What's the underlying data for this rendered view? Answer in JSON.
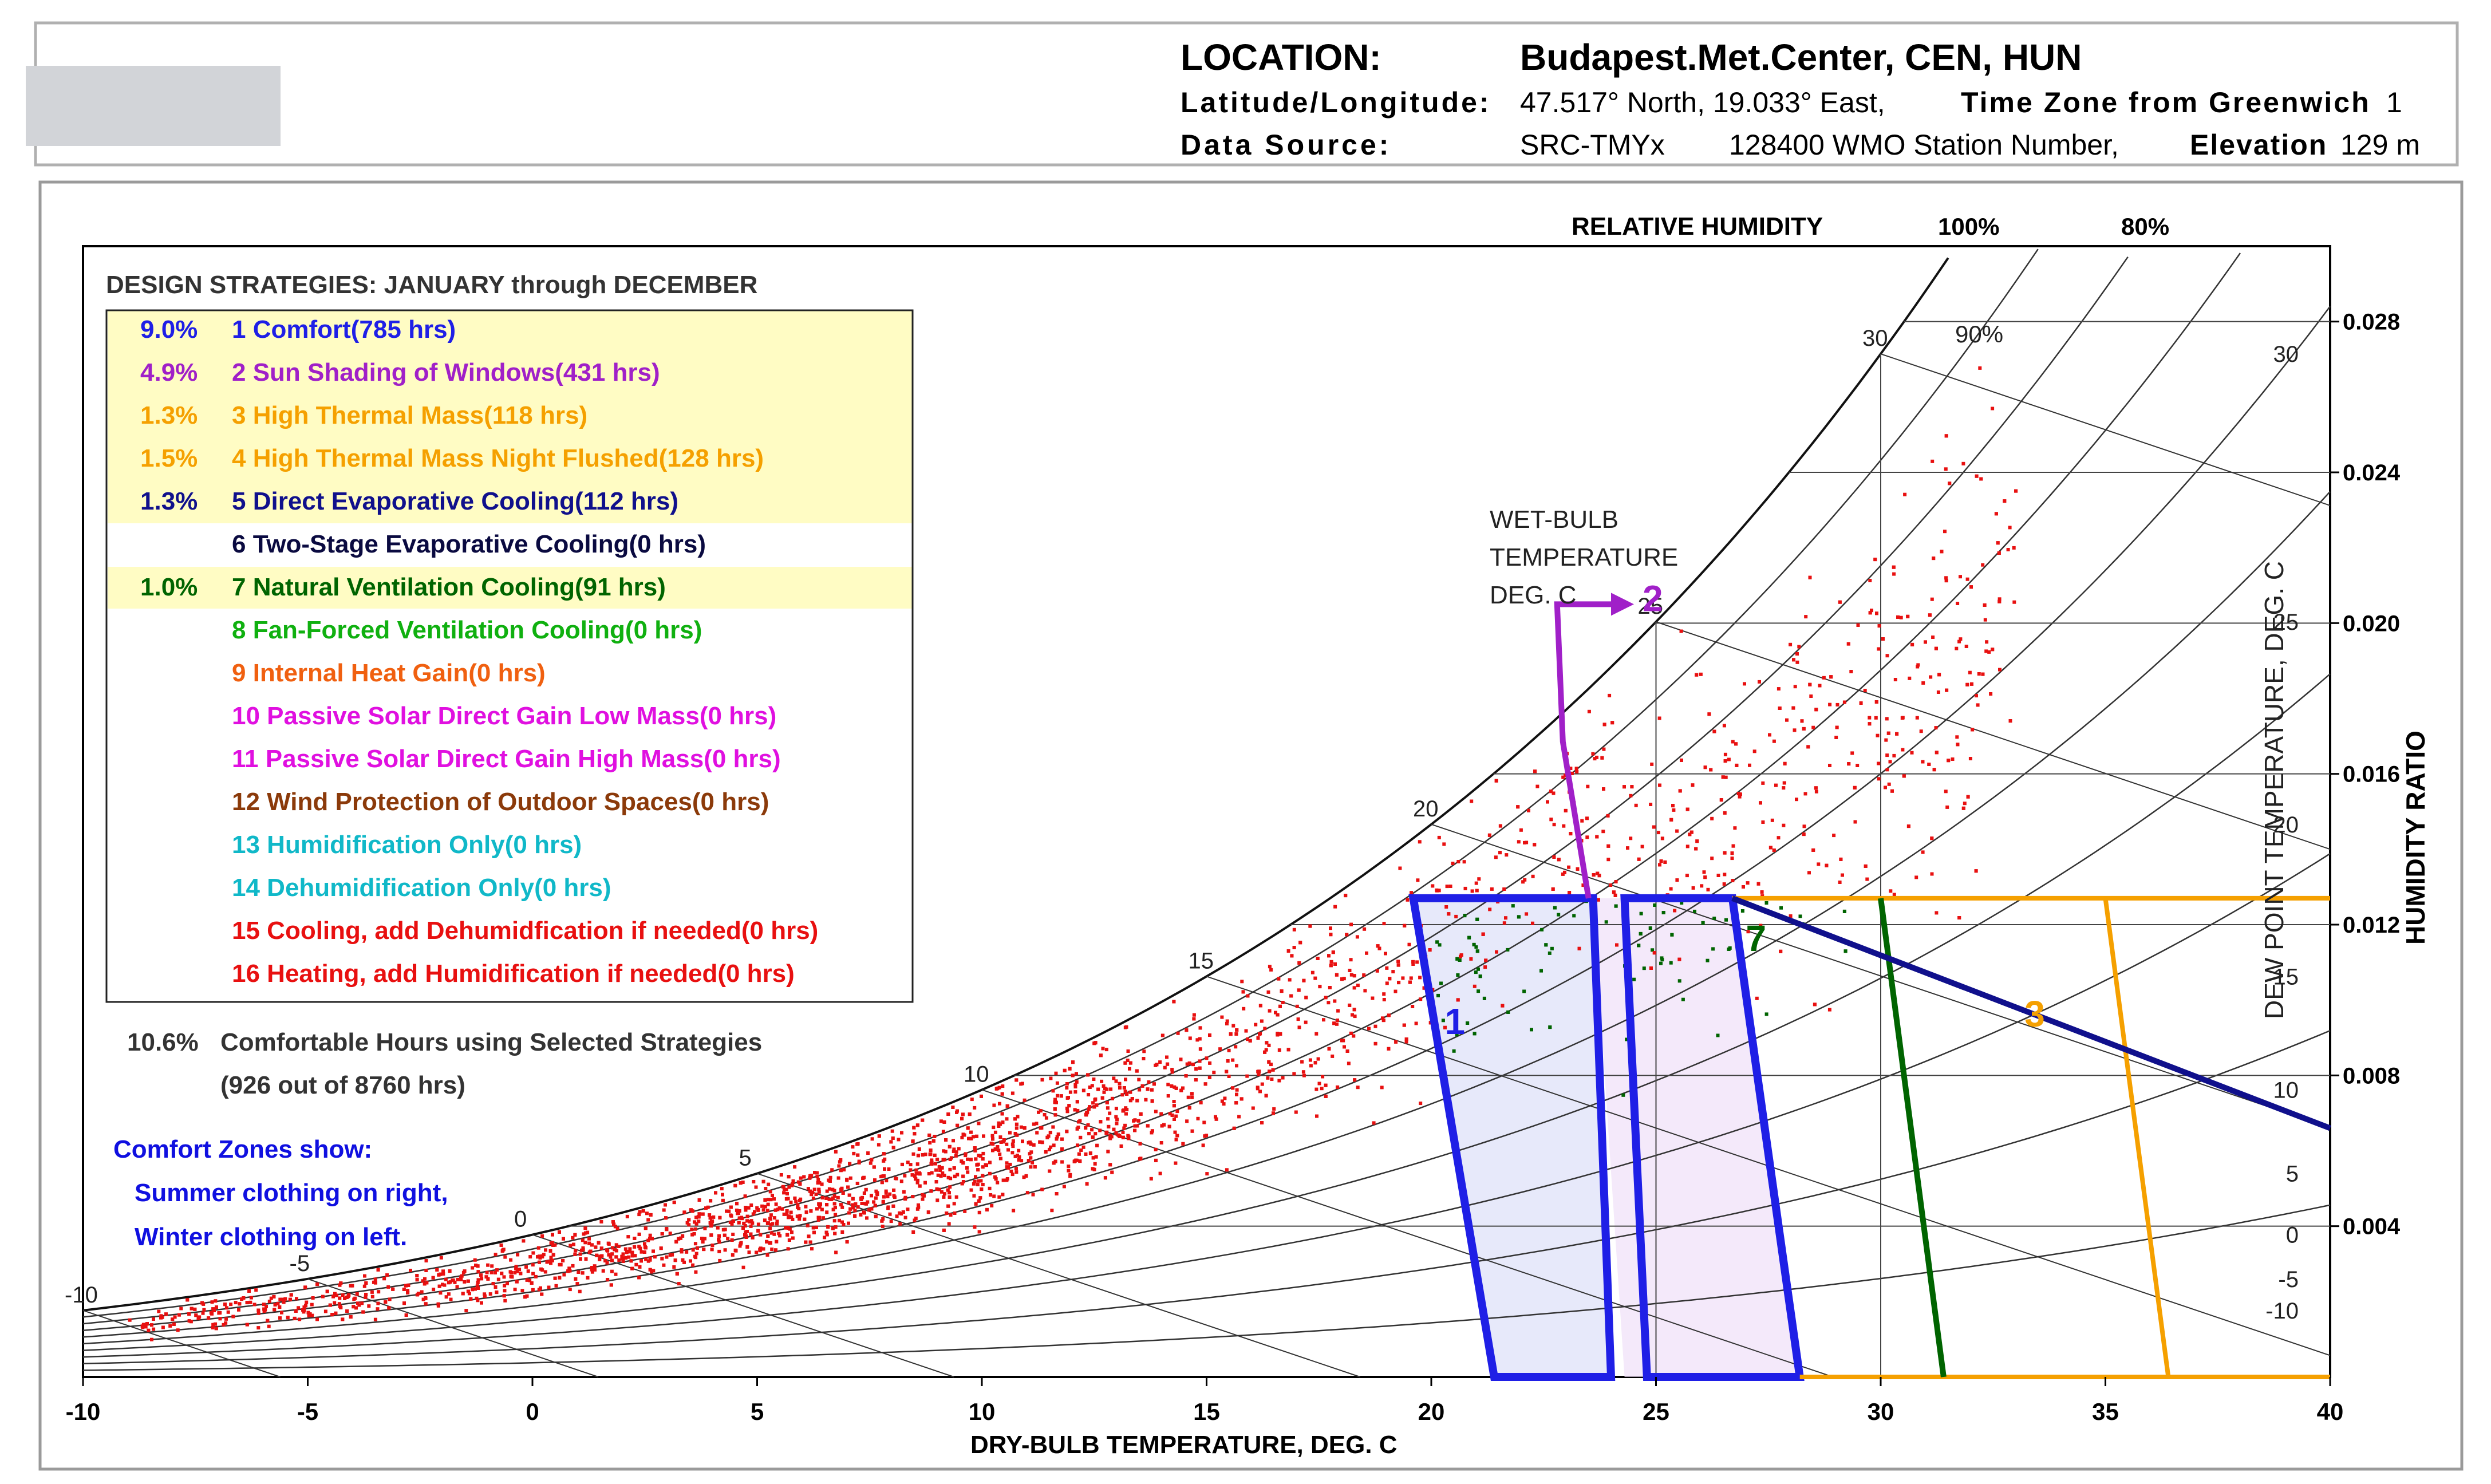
{
  "header": {
    "location_label": "LOCATION:",
    "location_value": "Budapest.Met.Center, CEN, HUN",
    "latlon_label": "Latitude/Longitude:",
    "latlon_value": "47.517° North, 19.033° East,",
    "tz_label": "Time Zone from Greenwich",
    "tz_value": "1",
    "source_label": "Data Source:",
    "source_value": "SRC-TMYx",
    "station_value": "128400 WMO Station Number,",
    "elevation_label": "Elevation",
    "elevation_value": "129 m"
  },
  "legend": {
    "title": "DESIGN STRATEGIES:  JANUARY through DECEMBER",
    "items": [
      {
        "pct": "9.0%",
        "label": "1  Comfort(785 hrs)",
        "color": "#1f1fe6",
        "highlight": true
      },
      {
        "pct": "4.9%",
        "label": "2  Sun Shading of Windows(431 hrs)",
        "color": "#a020c8",
        "highlight": true
      },
      {
        "pct": "1.3%",
        "label": "3  High Thermal Mass(118 hrs)",
        "color": "#f5a000",
        "highlight": true
      },
      {
        "pct": "1.5%",
        "label": "4  High Thermal Mass Night Flushed(128 hrs)",
        "color": "#f5a000",
        "highlight": true
      },
      {
        "pct": "1.3%",
        "label": "5  Direct Evaporative Cooling(112 hrs)",
        "color": "#10108c",
        "highlight": true
      },
      {
        "pct": "",
        "label": "6  Two-Stage Evaporative Cooling(0 hrs)",
        "color": "#0a0a40",
        "highlight": false
      },
      {
        "pct": "1.0%",
        "label": "7  Natural Ventilation Cooling(91 hrs)",
        "color": "#006400",
        "highlight": true
      },
      {
        "pct": "",
        "label": "8  Fan-Forced Ventilation Cooling(0 hrs)",
        "color": "#10b010",
        "highlight": false
      },
      {
        "pct": "",
        "label": "9  Internal Heat Gain(0 hrs)",
        "color": "#f06010",
        "highlight": false
      },
      {
        "pct": "",
        "label": "10  Passive Solar Direct Gain Low Mass(0 hrs)",
        "color": "#e010e0",
        "highlight": false
      },
      {
        "pct": "",
        "label": "11  Passive Solar Direct Gain High Mass(0 hrs)",
        "color": "#e010e0",
        "highlight": false
      },
      {
        "pct": "",
        "label": "12  Wind Protection of Outdoor Spaces(0 hrs)",
        "color": "#8b3a0a",
        "highlight": false
      },
      {
        "pct": "",
        "label": "13  Humidification Only(0 hrs)",
        "color": "#10b8c8",
        "highlight": false
      },
      {
        "pct": "",
        "label": "14  Dehumidification Only(0 hrs)",
        "color": "#10b8c8",
        "highlight": false
      },
      {
        "pct": "",
        "label": "15  Cooling, add Dehumidfication if needed(0 hrs)",
        "color": "#e81010",
        "highlight": false
      },
      {
        "pct": "",
        "label": "16  Heating, add Humidification if needed(0 hrs)",
        "color": "#e81010",
        "highlight": false
      }
    ],
    "summary_pct": "10.6%",
    "summary_label": "Comfortable Hours using Selected Strategies",
    "summary_detail": "(926 out of 8760 hrs)",
    "comfort_note_1": "Comfort Zones show:",
    "comfort_note_2": "Summer clothing on right,",
    "comfort_note_3": "Winter clothing on left."
  },
  "chart_data": {
    "type": "scatter",
    "title": "",
    "xlabel": "DRY-BULB TEMPERATURE, DEG. C",
    "ylabel": "HUMIDITY RATIO",
    "y2label": "DEW POINT TEMPERATURE, DEG. C",
    "xlim": [
      -10,
      40
    ],
    "ylim": [
      0,
      0.03
    ],
    "x_ticks": [
      -10,
      -5,
      0,
      5,
      10,
      15,
      20,
      25,
      30,
      35,
      40
    ],
    "y_ticks": [
      "0.004",
      "0.008",
      "0.012",
      "0.016",
      "0.020",
      "0.024",
      "0.028"
    ],
    "dewpoint_ticks": [
      "-10",
      "-5",
      "0",
      "5",
      "10",
      "15",
      "20",
      "25",
      "30"
    ],
    "rh_header": "RELATIVE HUMIDITY",
    "rh_labels": [
      "100%",
      "90%",
      "80%"
    ],
    "wetbulb_label_1": "WET-BULB",
    "wetbulb_label_2": "TEMPERATURE",
    "wetbulb_label_3": "DEG. C",
    "wetbulb_ticks": [
      "-10",
      "-5",
      "0",
      "5",
      "10",
      "15",
      "20",
      "25",
      "30"
    ],
    "zone_labels": [
      "1",
      "2",
      "3",
      "7"
    ],
    "rh_curves": [
      100,
      90,
      80,
      70,
      60,
      50,
      40,
      30,
      20,
      10
    ],
    "zone_shapes": [
      {
        "id": "1",
        "name": "comfort-winter",
        "color": "#1f1fe6",
        "tdb_bottom": [
          21.4,
          24.0
        ],
        "tdb_top": [
          19.6,
          23.6
        ],
        "w_top": 0.0127
      },
      {
        "id": "1",
        "name": "comfort-summer",
        "color": "#1f1fe6",
        "tdb_bottom": [
          24.8,
          28.2
        ],
        "tdb_top": [
          24.3,
          26.7
        ],
        "w_top": 0.0127
      },
      {
        "id": "3",
        "name": "high-thermal-mass",
        "color": "#f5a000",
        "tdb_bottom": [
          28.2,
          36.4
        ],
        "tdb_top": [
          26.7,
          35.0
        ],
        "w_top": 0.0127
      },
      {
        "id": "7",
        "name": "natural-ventilation",
        "color": "#006400",
        "tdb_bottom": [
          31.4
        ],
        "tdb_top": [
          30.0
        ],
        "w_top": 0.0127
      }
    ],
    "evap_cooling_line": {
      "color": "#10108c",
      "from": [
        26.7,
        0.0127
      ],
      "to": [
        40.0,
        0.0066
      ]
    },
    "sun_shading_arrow": {
      "color": "#a020c8",
      "from": [
        23.5,
        0.0127
      ],
      "corner": [
        22.8,
        0.0205
      ],
      "to": [
        24.0,
        0.0205
      ]
    },
    "series": [
      {
        "name": "hourly points (uncomfortable)",
        "color": "#e81010",
        "count": 7834
      },
      {
        "name": "hourly points (comfortable)",
        "color": "#006400",
        "count": 926
      }
    ]
  }
}
